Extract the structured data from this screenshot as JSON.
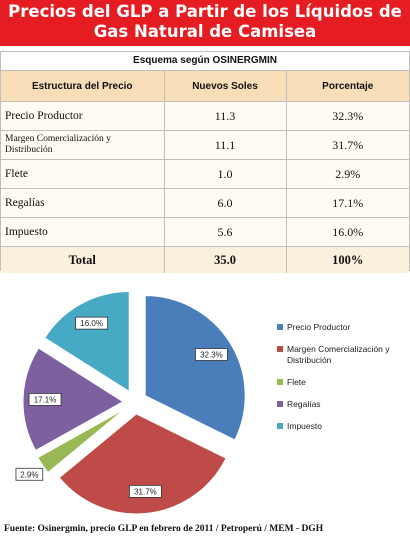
{
  "title": {
    "line1": "Precios del GLP a Partir de los Líquidos de",
    "line2": "Gas Natural de Camisea"
  },
  "table": {
    "caption": "Esquema según OSINERGMIN",
    "headers": [
      "Estructura del Precio",
      "Nuevos Soles",
      "Porcentaje"
    ],
    "rows": [
      {
        "item": "Precio Productor",
        "soles": "11.3",
        "pct": "32.3%"
      },
      {
        "item": "Margen Comercialización y Distribución",
        "soles": "11.1",
        "pct": "31.7%"
      },
      {
        "item": "Flete",
        "soles": "1.0",
        "pct": "2.9%"
      },
      {
        "item": "Regalías",
        "soles": "6.0",
        "pct": "17.1%"
      },
      {
        "item": "Impuesto",
        "soles": "5.6",
        "pct": "16.0%"
      }
    ],
    "total": {
      "label": "Total",
      "soles": "35.0",
      "pct": "100%"
    }
  },
  "chart_data": {
    "type": "pie",
    "categories": [
      "Precio Productor",
      "Margen Comercialización y Distribución",
      "Flete",
      "Regalías",
      "Impuesto"
    ],
    "values": [
      32.3,
      31.7,
      2.9,
      17.1,
      16.0
    ],
    "labels": [
      "32.3%",
      "31.7%",
      "2.9%",
      "17.1%",
      "16.0%"
    ],
    "colors": [
      "#4a7ebb",
      "#be4b48",
      "#98b954",
      "#7d60a0",
      "#46aac5"
    ],
    "legend_position": "right",
    "exploded": true
  },
  "source": "Fuente: Osinergmin, precio GLP en febrero de 2011 / Petroperú / MEM - DGH"
}
